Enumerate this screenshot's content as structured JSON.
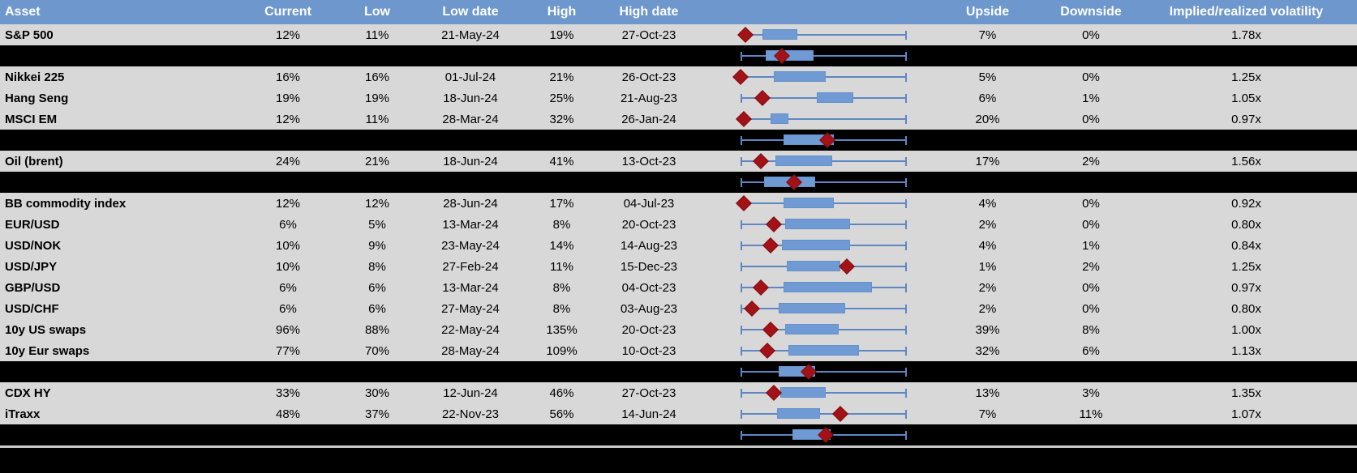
{
  "colors": {
    "header_bg": "#6d97cd",
    "header_text": "#ffffff",
    "row_bg": "#d8d8d8",
    "separator_bg": "#000000",
    "box_fill": "#6f9ad3",
    "whisker": "#5d87c3",
    "diamond": "#a31217",
    "text": "#000000",
    "divider": "#c9c9c9"
  },
  "columns": {
    "asset": "Asset",
    "current": "Current",
    "low": "Low",
    "low_date": "Low date",
    "high": "High",
    "high_date": "High date",
    "chart": "",
    "upside": "Upside",
    "downside": "Downside",
    "ratio": "Implied/realized volatility"
  },
  "chart_data": {
    "type": "boxplot",
    "note": "Each row shows a horizontal box-whisker of 1y volatility range (normalized 0-100 from low to high) with a red diamond marking current level; black separator rows show group-average boxplots.",
    "legend_position": "none",
    "grid": false,
    "xlim": [
      0,
      100
    ],
    "rows": [
      {
        "kind": "data",
        "asset": "S&P 500",
        "current": "12%",
        "low": "11%",
        "low_date": "21-May-24",
        "high": "19%",
        "high_date": "27-Oct-23",
        "upside": "7%",
        "downside": "0%",
        "ratio": "1.78x",
        "box": {
          "lo": 3,
          "q1": 13,
          "q3": 34,
          "hi": 100,
          "cur": 3
        }
      },
      {
        "kind": "separator",
        "box": {
          "lo": 0,
          "q1": 15,
          "q3": 44,
          "hi": 100,
          "cur": 25
        }
      },
      {
        "kind": "data",
        "asset": "Nikkei 225",
        "current": "16%",
        "low": "16%",
        "low_date": "01-Jul-24",
        "high": "21%",
        "high_date": "26-Oct-23",
        "upside": "5%",
        "downside": "0%",
        "ratio": "1.25x",
        "box": {
          "lo": 0,
          "q1": 20,
          "q3": 51,
          "hi": 100,
          "cur": 0
        }
      },
      {
        "kind": "data",
        "asset": "Hang Seng",
        "current": "19%",
        "low": "19%",
        "low_date": "18-Jun-24",
        "high": "25%",
        "high_date": "21-Aug-23",
        "upside": "6%",
        "downside": "1%",
        "ratio": "1.05x",
        "box": {
          "lo": 0,
          "q1": 46,
          "q3": 68,
          "hi": 100,
          "cur": 13
        }
      },
      {
        "kind": "data",
        "asset": "MSCI EM",
        "current": "12%",
        "low": "11%",
        "low_date": "28-Mar-24",
        "high": "32%",
        "high_date": "26-Jan-24",
        "upside": "20%",
        "downside": "0%",
        "ratio": "0.97x",
        "box": {
          "lo": 2,
          "q1": 18,
          "q3": 29,
          "hi": 100,
          "cur": 2
        }
      },
      {
        "kind": "separator",
        "box": {
          "lo": 0,
          "q1": 26,
          "q3": 56,
          "hi": 100,
          "cur": 52
        }
      },
      {
        "kind": "data",
        "asset": "Oil (brent)",
        "current": "24%",
        "low": "21%",
        "low_date": "18-Jun-24",
        "high": "41%",
        "high_date": "13-Oct-23",
        "upside": "17%",
        "downside": "2%",
        "ratio": "1.56x",
        "box": {
          "lo": 0,
          "q1": 21,
          "q3": 55,
          "hi": 100,
          "cur": 12
        }
      },
      {
        "kind": "separator",
        "box": {
          "lo": 0,
          "q1": 14,
          "q3": 45,
          "hi": 100,
          "cur": 32
        }
      },
      {
        "kind": "data",
        "asset": "BB commodity index",
        "current": "12%",
        "low": "12%",
        "low_date": "28-Jun-24",
        "high": "17%",
        "high_date": "04-Jul-23",
        "upside": "4%",
        "downside": "0%",
        "ratio": "0.92x",
        "box": {
          "lo": 2,
          "q1": 26,
          "q3": 56,
          "hi": 100,
          "cur": 2
        }
      },
      {
        "kind": "data",
        "asset": "EUR/USD",
        "current": "6%",
        "low": "5%",
        "low_date": "13-Mar-24",
        "high": "8%",
        "high_date": "20-Oct-23",
        "upside": "2%",
        "downside": "0%",
        "ratio": "0.80x",
        "box": {
          "lo": 0,
          "q1": 27,
          "q3": 66,
          "hi": 100,
          "cur": 20
        }
      },
      {
        "kind": "data",
        "asset": "USD/NOK",
        "current": "10%",
        "low": "9%",
        "low_date": "23-May-24",
        "high": "14%",
        "high_date": "14-Aug-23",
        "upside": "4%",
        "downside": "1%",
        "ratio": "0.84x",
        "box": {
          "lo": 0,
          "q1": 25,
          "q3": 66,
          "hi": 100,
          "cur": 18
        }
      },
      {
        "kind": "data",
        "asset": "USD/JPY",
        "current": "10%",
        "low": "8%",
        "low_date": "27-Feb-24",
        "high": "11%",
        "high_date": "15-Dec-23",
        "upside": "1%",
        "downside": "2%",
        "ratio": "1.25x",
        "box": {
          "lo": 0,
          "q1": 28,
          "q3": 60,
          "hi": 100,
          "cur": 64
        }
      },
      {
        "kind": "data",
        "asset": "GBP/USD",
        "current": "6%",
        "low": "6%",
        "low_date": "13-Mar-24",
        "high": "8%",
        "high_date": "04-Oct-23",
        "upside": "2%",
        "downside": "0%",
        "ratio": "0.97x",
        "box": {
          "lo": 0,
          "q1": 26,
          "q3": 79,
          "hi": 100,
          "cur": 12
        }
      },
      {
        "kind": "data",
        "asset": "USD/CHF",
        "current": "6%",
        "low": "6%",
        "low_date": "27-May-24",
        "high": "8%",
        "high_date": "03-Aug-23",
        "upside": "2%",
        "downside": "0%",
        "ratio": "0.80x",
        "box": {
          "lo": 0,
          "q1": 23,
          "q3": 63,
          "hi": 100,
          "cur": 7
        }
      },
      {
        "kind": "data",
        "asset": "10y US swaps",
        "current": "96%",
        "low": "88%",
        "low_date": "22-May-24",
        "high": "135%",
        "high_date": "20-Oct-23",
        "upside": "39%",
        "downside": "8%",
        "ratio": "1.00x",
        "box": {
          "lo": 0,
          "q1": 27,
          "q3": 59,
          "hi": 100,
          "cur": 18
        }
      },
      {
        "kind": "data",
        "asset": "10y Eur swaps",
        "current": "77%",
        "low": "70%",
        "low_date": "28-May-24",
        "high": "109%",
        "high_date": "10-Oct-23",
        "upside": "32%",
        "downside": "6%",
        "ratio": "1.13x",
        "box": {
          "lo": 0,
          "q1": 29,
          "q3": 71,
          "hi": 100,
          "cur": 16
        }
      },
      {
        "kind": "separator",
        "box": {
          "lo": 0,
          "q1": 23,
          "q3": 45,
          "hi": 100,
          "cur": 41
        }
      },
      {
        "kind": "data",
        "asset": "CDX HY",
        "current": "33%",
        "low": "30%",
        "low_date": "12-Jun-24",
        "high": "46%",
        "high_date": "27-Oct-23",
        "upside": "13%",
        "downside": "3%",
        "ratio": "1.35x",
        "box": {
          "lo": 0,
          "q1": 24,
          "q3": 51,
          "hi": 100,
          "cur": 20
        }
      },
      {
        "kind": "data",
        "asset": "iTraxx",
        "current": "48%",
        "low": "37%",
        "low_date": "22-Nov-23",
        "high": "56%",
        "high_date": "14-Jun-24",
        "upside": "7%",
        "downside": "11%",
        "ratio": "1.07x",
        "box": {
          "lo": 0,
          "q1": 22,
          "q3": 48,
          "hi": 100,
          "cur": 60
        }
      },
      {
        "kind": "separator",
        "box": {
          "lo": 0,
          "q1": 31,
          "q3": 54,
          "hi": 100,
          "cur": 51
        }
      }
    ]
  }
}
